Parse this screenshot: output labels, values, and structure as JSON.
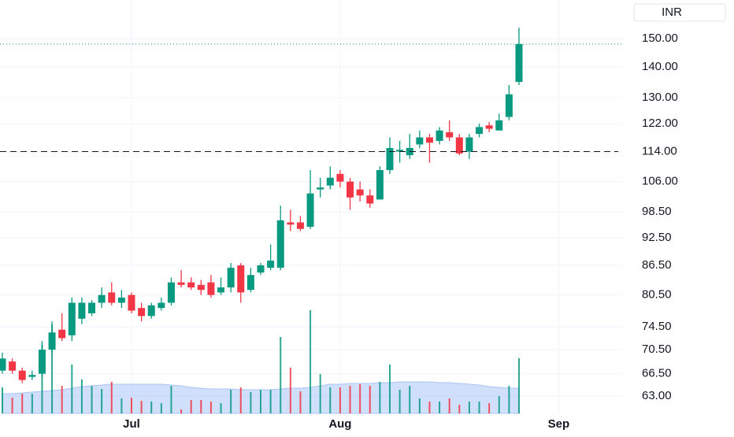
{
  "chart_data": {
    "type": "candlestick",
    "currency": "INR",
    "categories": [
      null,
      null,
      null,
      null,
      null,
      null,
      null,
      null,
      null,
      null,
      null,
      null,
      null,
      "Jul",
      null,
      null,
      null,
      null,
      null,
      null,
      null,
      null,
      null,
      null,
      null,
      null,
      null,
      null,
      null,
      null,
      null,
      null,
      null,
      null,
      "Aug",
      null,
      null,
      null,
      null,
      null,
      null,
      null,
      null,
      null,
      null,
      null,
      null,
      null,
      null,
      null,
      null,
      null,
      null,
      null,
      null,
      null,
      "Sep"
    ],
    "open": [
      67,
      68.5,
      67,
      66,
      66.5,
      70.5,
      74,
      73,
      76,
      77,
      79,
      81,
      79,
      80.5,
      78,
      76.5,
      78,
      79,
      83,
      83,
      82.5,
      83,
      81,
      82,
      86.5,
      81.5,
      85,
      86,
      86,
      96,
      96,
      95,
      104,
      105,
      108,
      106,
      104,
      102.5,
      101.5,
      109,
      114,
      113,
      116,
      118,
      117,
      119.5,
      118,
      114,
      119,
      121.5,
      120,
      124,
      135,
      null,
      null,
      null,
      null
    ],
    "high": [
      70,
      69,
      67.5,
      67,
      72,
      75.5,
      77,
      80,
      80,
      79.5,
      82,
      83,
      81.5,
      81,
      79,
      79,
      80,
      84,
      85.5,
      84,
      83.5,
      84.5,
      84,
      87,
      87,
      86,
      87,
      91,
      100,
      99,
      97.5,
      109,
      107,
      110,
      109,
      107,
      106,
      104,
      110,
      118,
      117,
      119,
      120,
      119,
      121,
      123,
      119,
      119,
      122,
      122.5,
      125,
      134,
      154,
      null,
      null,
      null,
      null
    ],
    "low": [
      66.5,
      66.5,
      65,
      65.5,
      66,
      70,
      72,
      72,
      75,
      76.5,
      78,
      78.5,
      78,
      77,
      75.5,
      76,
      77.5,
      78.5,
      82,
      81.5,
      80.5,
      80,
      80.5,
      81,
      79,
      81,
      84.5,
      85.5,
      85.5,
      94,
      94,
      94.5,
      102,
      104,
      104.5,
      99,
      101,
      99.5,
      101.5,
      108,
      111,
      112,
      115,
      111,
      116,
      117,
      113,
      112,
      118,
      119.5,
      120,
      123,
      134,
      null,
      null,
      null,
      null
    ],
    "close": [
      69,
      67,
      65.5,
      66.3,
      70.5,
      73.5,
      72.5,
      79,
      79,
      79,
      80.5,
      79,
      80,
      77.5,
      76.5,
      78.5,
      79,
      83,
      82.5,
      82,
      81.5,
      80.5,
      82,
      86,
      81,
      84.5,
      86.5,
      87.5,
      96.5,
      95.5,
      94.5,
      103,
      104.5,
      107,
      106,
      102,
      102.5,
      100.5,
      109,
      115,
      114.5,
      115,
      118,
      116.5,
      120,
      118,
      113.5,
      118,
      121,
      120.5,
      123,
      131,
      148,
      null,
      null,
      null,
      null
    ],
    "volume": [
      33,
      20,
      25,
      25,
      87,
      113,
      35,
      62,
      43,
      35,
      31,
      40,
      19,
      20,
      16,
      15,
      13,
      35,
      5,
      17,
      17,
      15,
      13,
      30,
      33,
      27,
      30,
      30,
      97,
      58,
      28,
      131,
      50,
      33,
      33,
      35,
      37,
      35,
      40,
      62,
      30,
      35,
      19,
      15,
      15,
      19,
      11,
      15,
      15,
      13,
      22,
      35,
      70,
      null,
      null,
      null,
      null
    ],
    "volume_ma": [
      25,
      25,
      26,
      27,
      28,
      29,
      30,
      32,
      34,
      35,
      36,
      37,
      37,
      37,
      37,
      37,
      37,
      36,
      35,
      33,
      32,
      31,
      31,
      31,
      30,
      30,
      30,
      30,
      31,
      32,
      32,
      33,
      35,
      37,
      37,
      38,
      38,
      38,
      39,
      39,
      40,
      40,
      40,
      40,
      39,
      39,
      38,
      37,
      36,
      34,
      33,
      32,
      32,
      null,
      null,
      null,
      null
    ],
    "volume_ylim": [
      0,
      525
    ],
    "ylim": [
      60.4,
      164.7
    ],
    "log_scale": true,
    "grid": true,
    "yticks": [
      {
        "value": 63,
        "label": "63.00"
      },
      {
        "value": 66.5,
        "label": "66.50"
      },
      {
        "value": 70.5,
        "label": "70.50"
      },
      {
        "value": 74.5,
        "label": "74.50"
      },
      {
        "value": 80.5,
        "label": "80.50"
      },
      {
        "value": 86.5,
        "label": "86.50"
      },
      {
        "value": 92.5,
        "label": "92.50"
      },
      {
        "value": 98.5,
        "label": "98.50"
      },
      {
        "value": 106,
        "label": "106.00"
      },
      {
        "value": 114,
        "label": "114.00"
      },
      {
        "value": 122,
        "label": "122.00"
      },
      {
        "value": 130,
        "label": "130.00"
      },
      {
        "value": 140,
        "label": "140.00"
      },
      {
        "value": 150,
        "label": "150.00"
      }
    ],
    "last_price": 148,
    "price_line": 114,
    "up_color": "#089981",
    "down_color": "#f23645",
    "volume_ma_color": "#a9c4f5"
  }
}
